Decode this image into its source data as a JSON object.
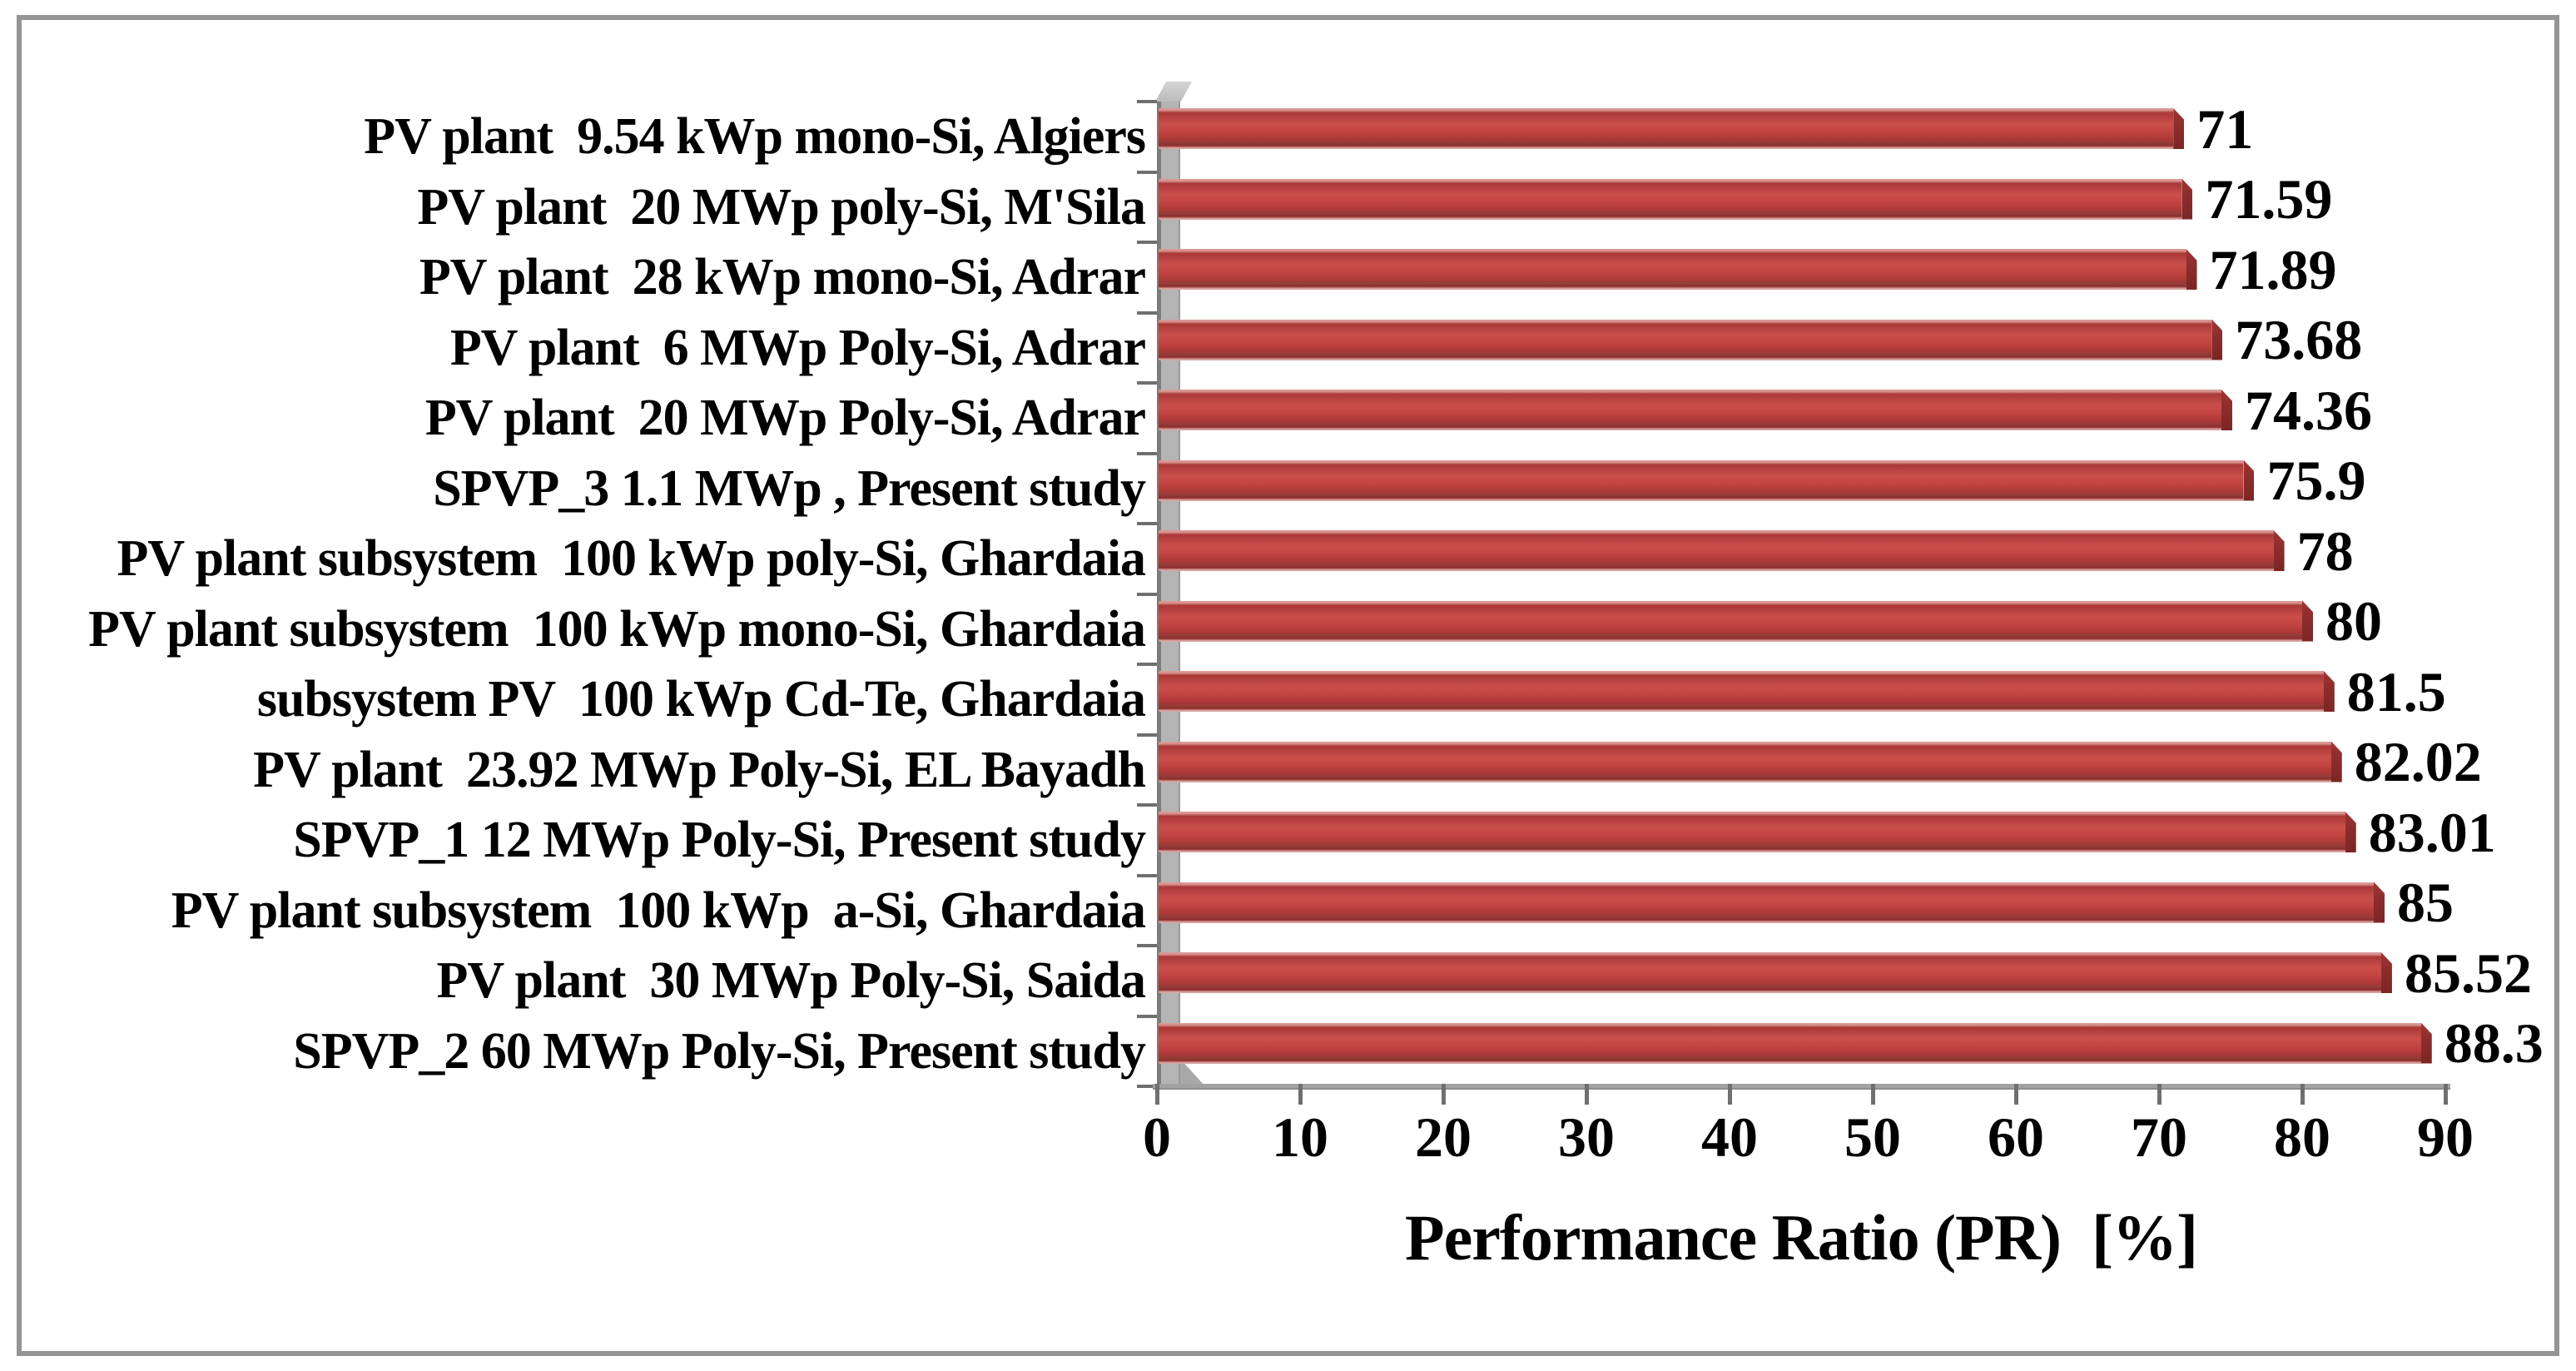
{
  "figure": {
    "background": "#ffffff",
    "frame_color": "#949494"
  },
  "chart_data": {
    "type": "bar",
    "orientation": "horizontal",
    "title": "",
    "xlabel": "Performance Ratio (PR)  [%]",
    "ylabel": "",
    "xlim": [
      0,
      90
    ],
    "x_ticks": [
      0,
      10,
      20,
      30,
      40,
      50,
      60,
      70,
      80,
      90
    ],
    "grid": false,
    "legend": false,
    "bar_color": "#c24442",
    "bar_color_dark": "#8e2d2c",
    "bar_color_highlight": "#dd9b97",
    "wall_color": "#b4b4b4",
    "axis_line_color": "#a2a2a2",
    "tick_color": "#6f6f6f",
    "text_color": "#000000",
    "categories": [
      "PV plant  9.54 kWp mono-Si, Algiers",
      "PV plant  20 MWp poly-Si, M'Sila",
      "PV plant  28 kWp mono-Si, Adrar",
      "PV plant  6 MWp Poly-Si, Adrar",
      "PV plant  20 MWp Poly-Si, Adrar",
      "SPVP_3 1.1 MWp , Present study",
      "PV plant subsystem  100 kWp poly-Si, Ghardaia",
      "PV plant subsystem  100 kWp mono-Si, Ghardaia",
      "subsystem PV  100 kWp Cd-Te, Ghardaia",
      "PV plant  23.92 MWp Poly-Si, EL Bayadh",
      "SPVP_1 12 MWp Poly-Si, Present study",
      "PV plant subsystem  100 kWp  a-Si, Ghardaia",
      "PV plant  30 MWp Poly-Si, Saida",
      "SPVP_2 60 MWp Poly-Si, Present study"
    ],
    "values": [
      71,
      71.59,
      71.89,
      73.68,
      74.36,
      75.9,
      78,
      80,
      81.5,
      82.02,
      83.01,
      85,
      85.52,
      88.3
    ]
  }
}
